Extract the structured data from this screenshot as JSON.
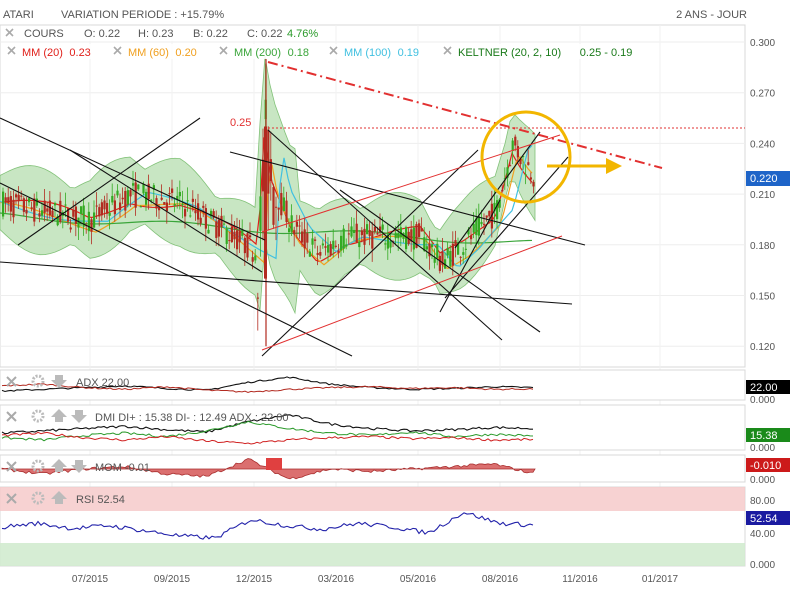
{
  "header": {
    "ticker": "ATARI",
    "variation": "VARIATION PERIODE : +15.79%",
    "range": "2 ANS - JOUR"
  },
  "legend_row1": {
    "cours_label": "COURS",
    "open": "O: 0.22",
    "high": "H: 0.23",
    "low": "B: 0.22",
    "close": "C: 0.22",
    "change": "4.76%"
  },
  "legend_row2": [
    {
      "label": "MM (20)",
      "value": "0.23",
      "color": "#e0201b"
    },
    {
      "label": "MM (60)",
      "value": "0.20",
      "color": "#f0a020"
    },
    {
      "label": "MM (200)",
      "value": "0.18",
      "color": "#3aa53a"
    },
    {
      "label": "MM (100)",
      "value": "0.19",
      "color": "#40c0e0"
    },
    {
      "label": "KELTNER (20, 2, 10)",
      "value": "0.25 - 0.19",
      "color": "#1a7a1a"
    }
  ],
  "colors": {
    "up": "#33aa22",
    "down": "#b22a20",
    "band": "#c6e5c0",
    "accent_yellow": "#f2b600",
    "accent_red": "#e23030"
  },
  "chart_data": [
    {
      "type": "candlestick",
      "title": "ATARI",
      "x_ticks": [
        "07/2015",
        "09/2015",
        "12/2015",
        "03/2016",
        "05/2016",
        "08/2016",
        "11/2016",
        "01/2017"
      ],
      "y_ticks": [
        "0.300",
        "0.270",
        "0.240",
        "0.210",
        "0.180",
        "0.150",
        "0.120"
      ],
      "ylim": [
        0.11,
        0.305
      ],
      "current_price": 0.22,
      "current_label": "0.220",
      "level": 0.25,
      "level_label": "0.25",
      "ohlc_sample": [
        {
          "x": "06/2015",
          "open": 0.2,
          "high": 0.22,
          "low": 0.19,
          "close": 0.21
        },
        {
          "x": "07/2015",
          "open": 0.19,
          "high": 0.21,
          "low": 0.18,
          "close": 0.18
        },
        {
          "x": "09/2015",
          "open": 0.21,
          "high": 0.22,
          "low": 0.2,
          "close": 0.2
        },
        {
          "x": "11/2015",
          "open": 0.19,
          "high": 0.19,
          "low": 0.17,
          "close": 0.17
        },
        {
          "x": "12/2015",
          "open": 0.16,
          "high": 0.29,
          "low": 0.12,
          "close": 0.25
        },
        {
          "x": "01/2016",
          "open": 0.19,
          "high": 0.2,
          "low": 0.16,
          "close": 0.17
        },
        {
          "x": "03/2016",
          "open": 0.18,
          "high": 0.2,
          "low": 0.17,
          "close": 0.19
        },
        {
          "x": "05/2016",
          "open": 0.18,
          "high": 0.19,
          "low": 0.16,
          "close": 0.18
        },
        {
          "x": "07/2016",
          "open": 0.18,
          "high": 0.21,
          "low": 0.17,
          "close": 0.2
        },
        {
          "x": "08/2016",
          "open": 0.23,
          "high": 0.25,
          "low": 0.22,
          "close": 0.24
        },
        {
          "x": "09/2016",
          "open": 0.21,
          "high": 0.23,
          "low": 0.2,
          "close": 0.22
        }
      ]
    },
    {
      "type": "line",
      "title": "ADX",
      "legend": "ADX 22.00",
      "value_label": "22.00",
      "y_ticks": [
        "0.000"
      ],
      "series": [
        {
          "name": "ADX",
          "values": [
            18,
            20,
            22,
            24,
            21,
            19,
            28,
            34,
            26,
            22,
            20,
            21,
            23,
            22
          ]
        }
      ]
    },
    {
      "type": "line",
      "title": "DMI",
      "legend": "DMI DI+ : 15.38 DI- : 12.49 ADX : 22.00",
      "value_label": "15.38",
      "y_ticks": [
        "0.000"
      ],
      "series": [
        {
          "name": "DI+",
          "values": [
            14,
            12,
            16,
            18,
            15,
            20,
            28,
            22,
            18,
            16,
            19,
            15,
            17,
            15.38
          ]
        },
        {
          "name": "DI-",
          "values": [
            16,
            18,
            14,
            12,
            15,
            11,
            9,
            12,
            14,
            15,
            13,
            14,
            12,
            12.49
          ]
        },
        {
          "name": "ADX",
          "values": [
            18,
            20,
            22,
            24,
            21,
            19,
            28,
            34,
            26,
            22,
            20,
            21,
            23,
            22
          ]
        }
      ]
    },
    {
      "type": "area",
      "title": "MOM",
      "legend": "MOM -0.01",
      "value_label": "-0.010",
      "y_ticks": [
        "0.000"
      ],
      "series": [
        {
          "name": "MOM",
          "values": [
            0.0,
            -0.01,
            0.0,
            0.005,
            -0.01,
            -0.015,
            0.02,
            -0.02,
            0.0,
            -0.005,
            0.0,
            0.005,
            0.01,
            -0.01
          ]
        }
      ]
    },
    {
      "type": "line",
      "title": "RSI",
      "legend": "RSI 52.54",
      "value_label": "52.54",
      "y_ticks": [
        "80.00",
        "40.00",
        "0.000"
      ],
      "overbought": 70,
      "oversold": 30,
      "series": [
        {
          "name": "RSI",
          "values": [
            50,
            55,
            48,
            52,
            45,
            38,
            35,
            60,
            52,
            47,
            55,
            50,
            42,
            70,
            55,
            52.54
          ]
        }
      ]
    }
  ]
}
